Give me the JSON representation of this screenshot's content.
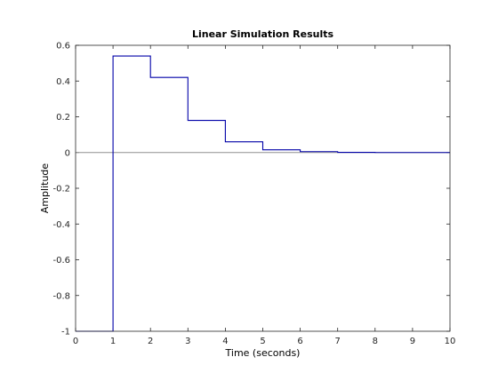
{
  "chart_data": {
    "type": "line",
    "style": "stairs",
    "title": "Linear Simulation Results",
    "xlabel": "Time (seconds)",
    "ylabel": "Amplitude",
    "xlim": [
      0,
      10
    ],
    "ylim": [
      -1,
      0.6
    ],
    "xticks": [
      0,
      1,
      2,
      3,
      4,
      5,
      6,
      7,
      8,
      9,
      10
    ],
    "yticks": [
      -1,
      -0.8,
      -0.6,
      -0.4,
      -0.2,
      0,
      0.2,
      0.4,
      0.6
    ],
    "xtick_labels": [
      "0",
      "1",
      "2",
      "3",
      "4",
      "5",
      "6",
      "7",
      "8",
      "9",
      "10"
    ],
    "ytick_labels": [
      "-1",
      "-0.8",
      "-0.6",
      "-0.4",
      "-0.2",
      "0",
      "0.2",
      "0.4",
      "0.6"
    ],
    "grid": false,
    "zero_line": true,
    "series": [
      {
        "color": "#0000a8",
        "x": [
          0,
          1,
          2,
          3,
          4,
          5,
          6,
          7,
          8,
          9,
          10
        ],
        "values": [
          -1,
          0.54,
          0.42,
          0.18,
          0.06,
          0.015,
          0.005,
          0.001,
          0,
          0,
          0
        ]
      }
    ]
  }
}
